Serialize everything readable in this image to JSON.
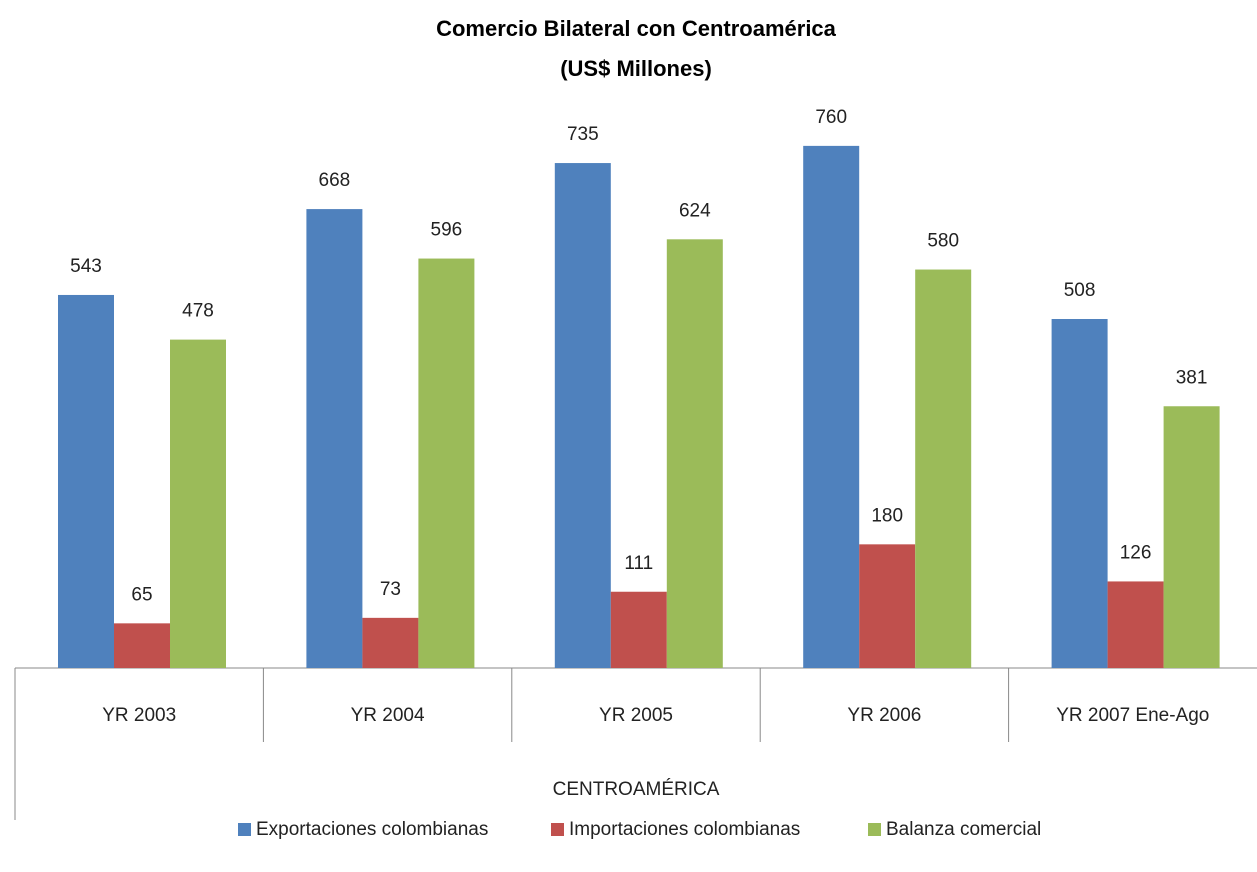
{
  "chart_data": {
    "type": "bar",
    "title": "Comercio Bilateral con Centroamérica",
    "subtitle": "(US$ Millones)",
    "categories": [
      "YR 2003",
      "YR 2004",
      "YR 2005",
      "YR 2006",
      "YR 2007 Ene-Ago"
    ],
    "group_label": "CENTROAMÉRICA",
    "series": [
      {
        "name": "Exportaciones colombianas",
        "color": "#4f81bd",
        "values": [
          543,
          668,
          735,
          760,
          508
        ]
      },
      {
        "name": "Importaciones colombianas",
        "color": "#c0504d",
        "values": [
          65,
          73,
          111,
          180,
          126
        ]
      },
      {
        "name": "Balanza comercial",
        "color": "#9bbb59",
        "values": [
          478,
          596,
          624,
          580,
          381
        ]
      }
    ],
    "legend": "bottom"
  }
}
